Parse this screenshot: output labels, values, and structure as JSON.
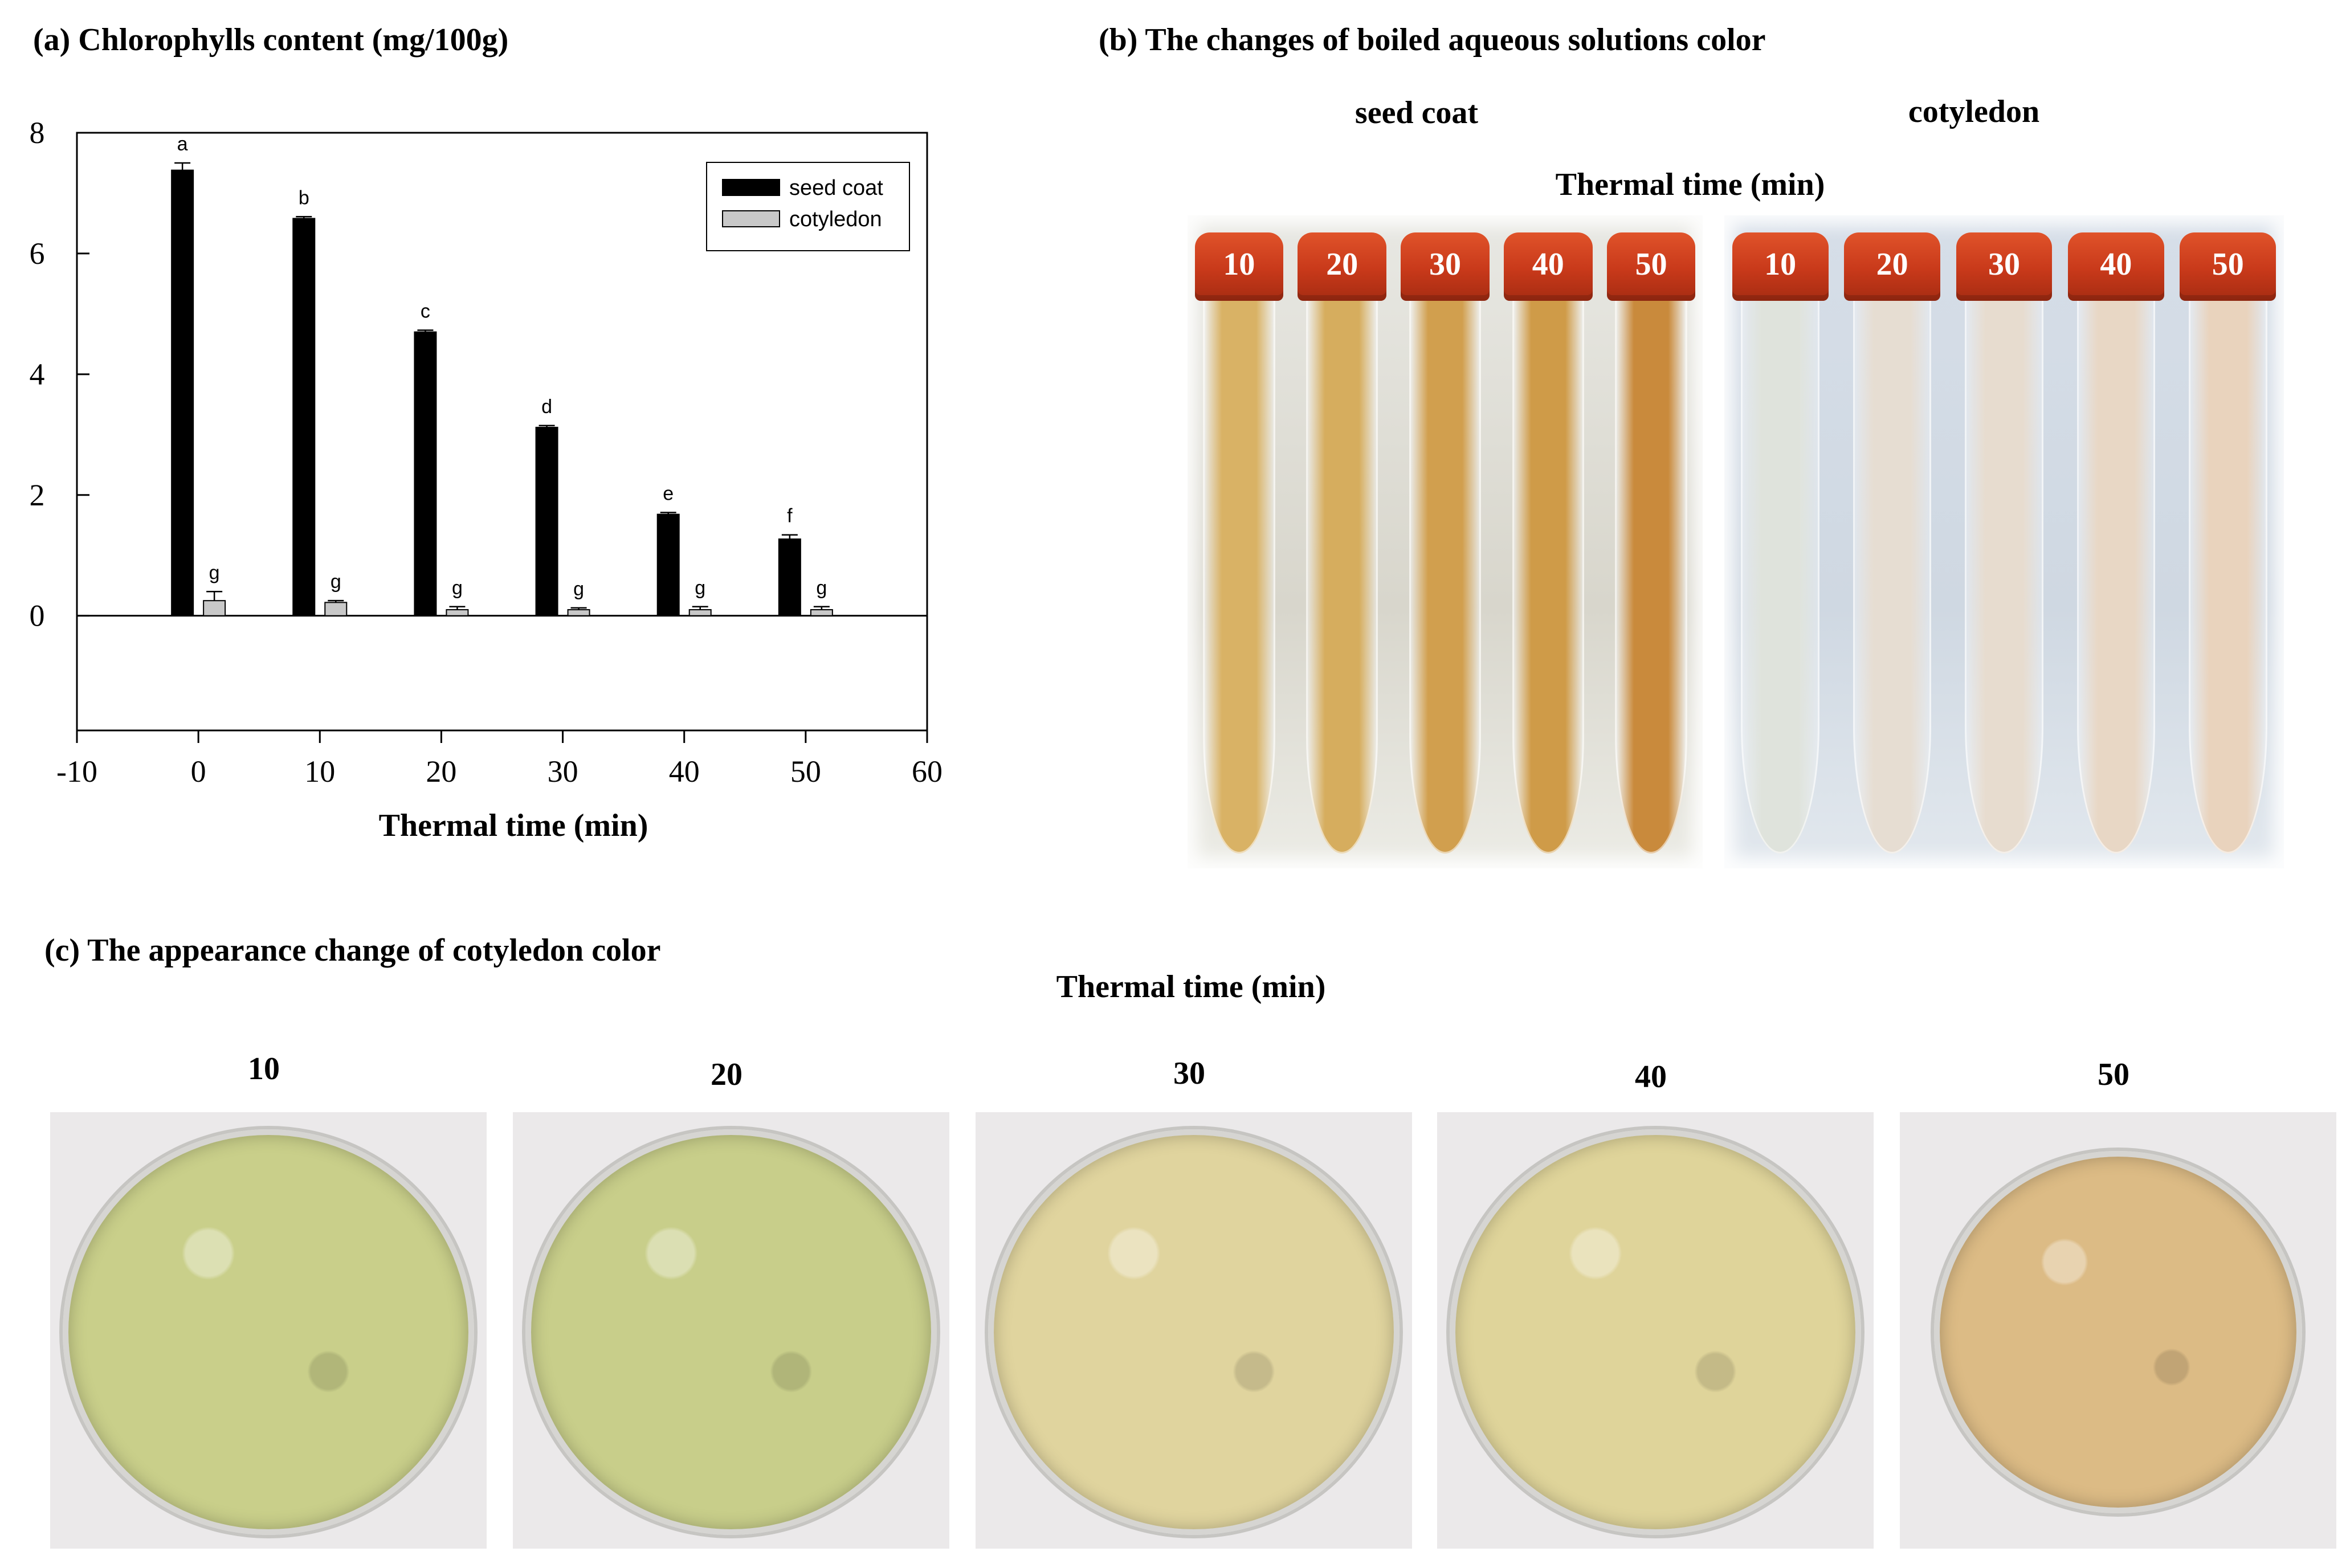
{
  "panel_a": {
    "title": "(a) Chlorophylls content (mg/100g)",
    "chart_data": {
      "type": "bar",
      "title": "(a) Chlorophylls content (mg/100g)",
      "xlabel": "Thermal time (min)",
      "ylabel": "",
      "x": [
        0,
        10,
        20,
        30,
        40,
        50
      ],
      "xlim": [
        -10,
        60
      ],
      "ylim": [
        -1.9,
        8
      ],
      "xticks": [
        "-10",
        "0",
        "10",
        "20",
        "30",
        "40",
        "50",
        "60"
      ],
      "yticks": [
        "0",
        "2",
        "4",
        "6",
        "8"
      ],
      "legend_position": "top-right",
      "series": [
        {
          "name": "seed coat",
          "color": "#000000",
          "values": [
            7.38,
            6.58,
            4.7,
            3.12,
            1.68,
            1.27
          ],
          "errors": [
            0.12,
            0.03,
            0.03,
            0.03,
            0.03,
            0.07
          ],
          "letters": [
            "a",
            "b",
            "c",
            "d",
            "e",
            "f"
          ]
        },
        {
          "name": "cotyledon",
          "color": "#c8c8c8",
          "values": [
            0.25,
            0.22,
            0.1,
            0.1,
            0.1,
            0.1
          ],
          "errors": [
            0.15,
            0.03,
            0.05,
            0.03,
            0.05,
            0.05
          ],
          "letters": [
            "g",
            "g",
            "g",
            "g",
            "g",
            "g"
          ]
        }
      ]
    }
  },
  "panel_b": {
    "title": "(b) The changes of boiled aqueous solutions color",
    "seed_coat_label": "seed coat",
    "cotyledon_label": "cotyledon",
    "axis_label": "Thermal time (min)",
    "seed_coat_tubes": [
      {
        "label": "10",
        "color": "#d9b265"
      },
      {
        "label": "20",
        "color": "#d6ad5e"
      },
      {
        "label": "30",
        "color": "#d19f4e"
      },
      {
        "label": "40",
        "color": "#cf9b48"
      },
      {
        "label": "50",
        "color": "#c98a3c"
      }
    ],
    "cotyledon_tubes": [
      {
        "label": "10",
        "color": "#dfe3dc"
      },
      {
        "label": "20",
        "color": "#e6ddd2"
      },
      {
        "label": "30",
        "color": "#e7dccf"
      },
      {
        "label": "40",
        "color": "#e8d7c5"
      },
      {
        "label": "50",
        "color": "#e9d3bd"
      }
    ]
  },
  "panel_c": {
    "title": "(c) The appearance change of cotyledon color",
    "axis_label": "Thermal time (min)",
    "dishes": [
      {
        "label": "10",
        "color": "#c9cf8a"
      },
      {
        "label": "20",
        "color": "#c8ce8a"
      },
      {
        "label": "30",
        "color": "#e0d49e"
      },
      {
        "label": "40",
        "color": "#dfd49a"
      },
      {
        "label": "50",
        "color": "#dcbb85"
      }
    ]
  }
}
